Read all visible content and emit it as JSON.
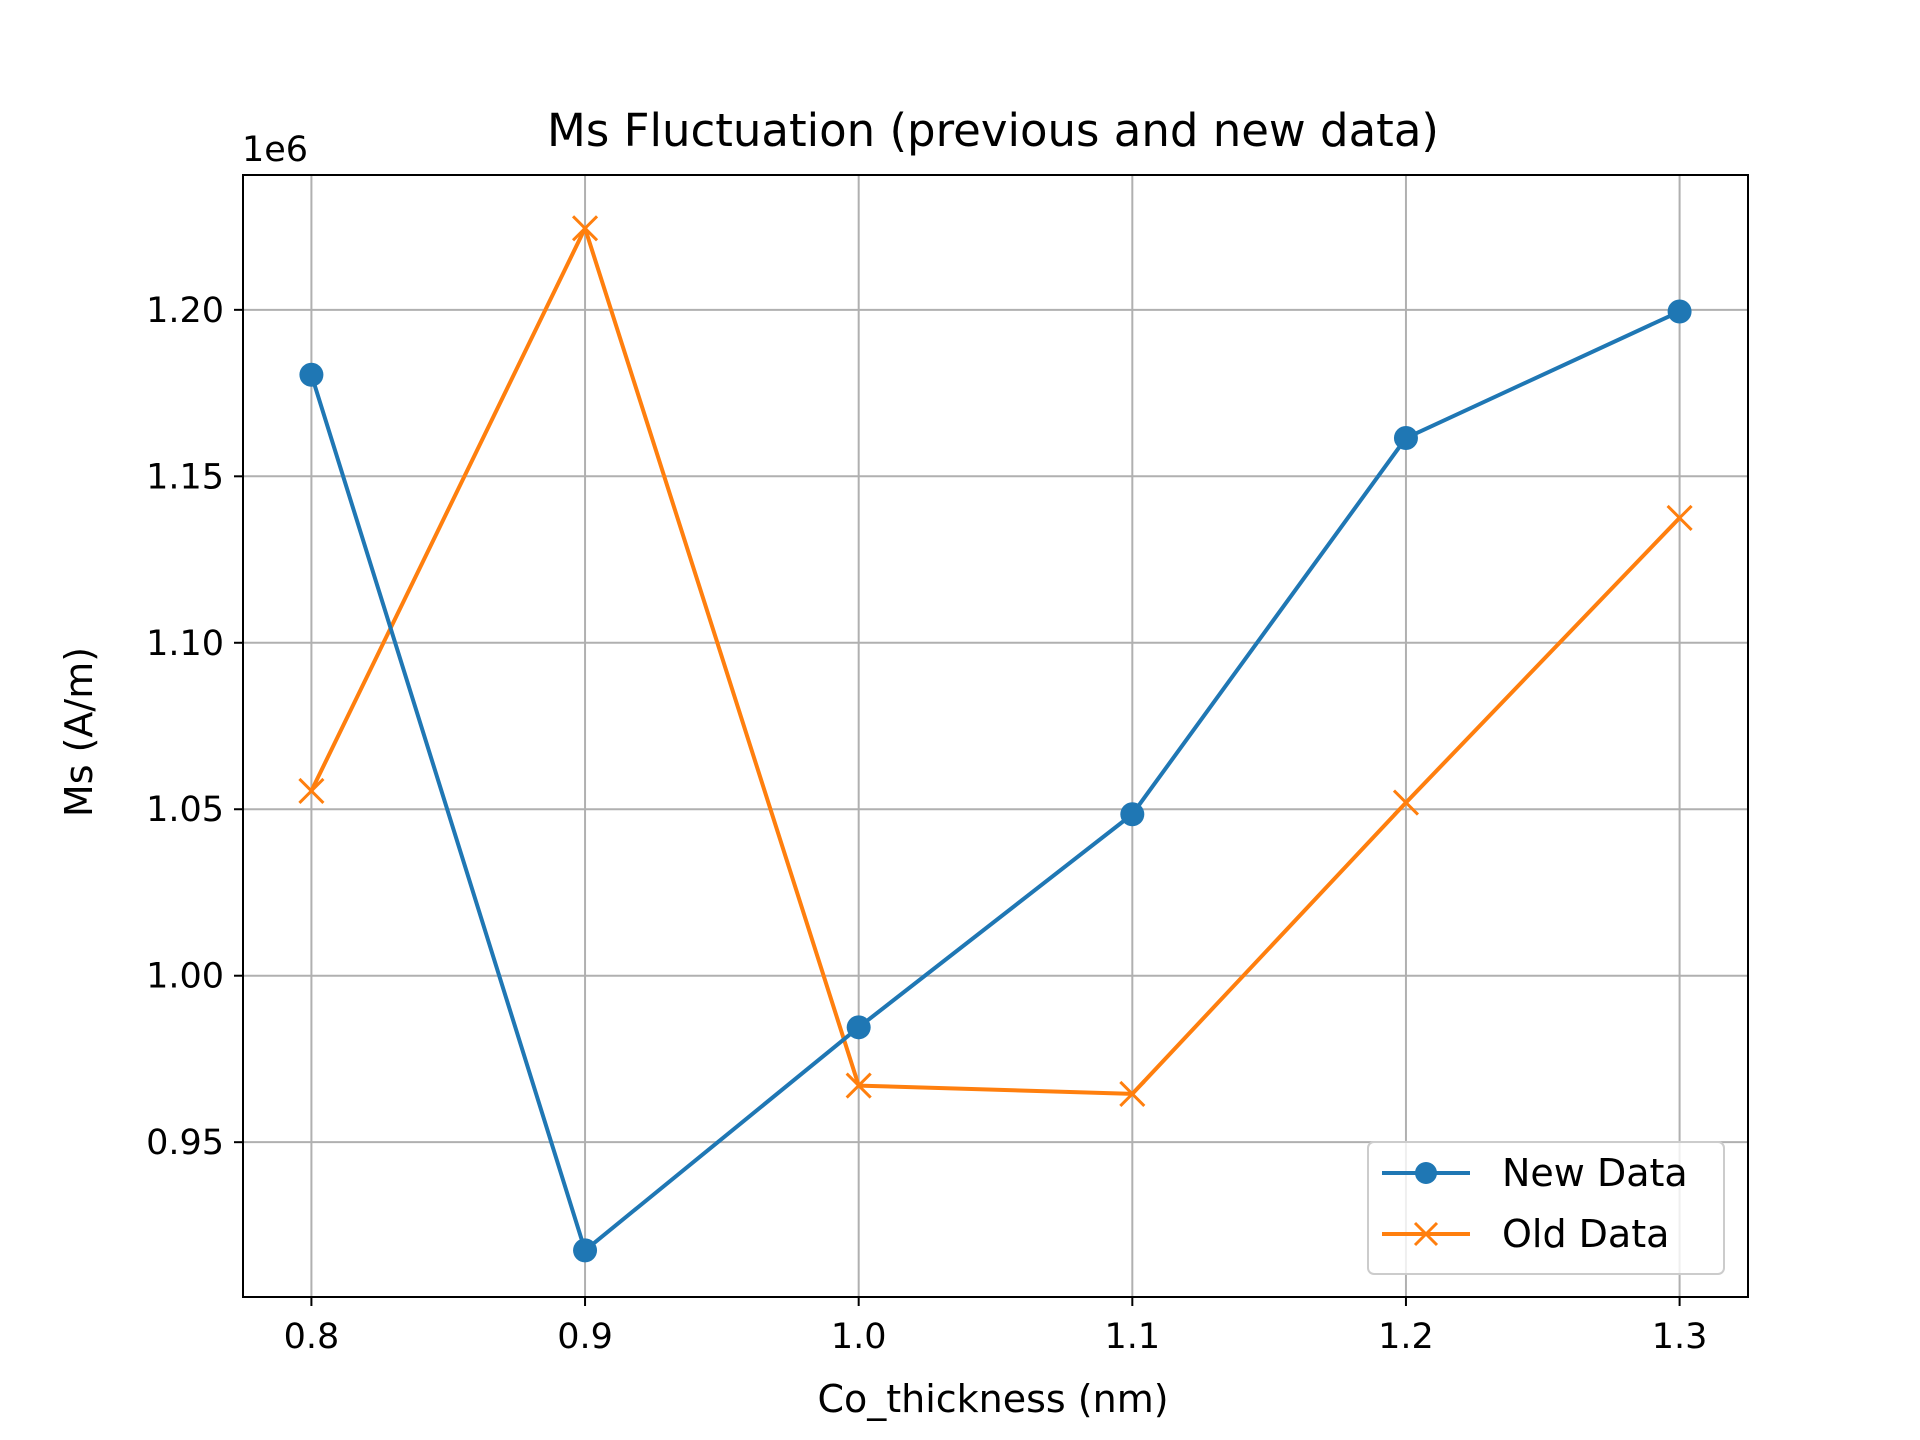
{
  "chart_data": {
    "type": "line",
    "title": "Ms Fluctuation (previous and new data)",
    "xlabel": "Co_thickness (nm)",
    "ylabel": "Ms (A/m)",
    "y_offset_label": "1e6",
    "x": [
      0.8,
      0.9,
      1.0,
      1.1,
      1.2,
      1.3
    ],
    "xlim": [
      0.775,
      1.325
    ],
    "ylim": [
      0.9035,
      1.2405
    ],
    "xticks": [
      "0.8",
      "0.9",
      "1.0",
      "1.1",
      "1.2",
      "1.3"
    ],
    "yticks": [
      "0.95",
      "1.00",
      "1.05",
      "1.10",
      "1.15",
      "1.20"
    ],
    "ytick_values": [
      0.95,
      1.0,
      1.05,
      1.1,
      1.15,
      1.2
    ],
    "grid": true,
    "legend": "lower-right",
    "series": [
      {
        "name": "New Data",
        "color": "#1f77b4",
        "marker": "circle",
        "values": [
          1.1805,
          0.9175,
          0.9845,
          1.0485,
          1.1615,
          1.1995
        ]
      },
      {
        "name": "Old Data",
        "color": "#ff7f0e",
        "marker": "x",
        "values": [
          1.0555,
          1.2245,
          0.967,
          0.9645,
          1.052,
          1.1375
        ]
      }
    ]
  }
}
